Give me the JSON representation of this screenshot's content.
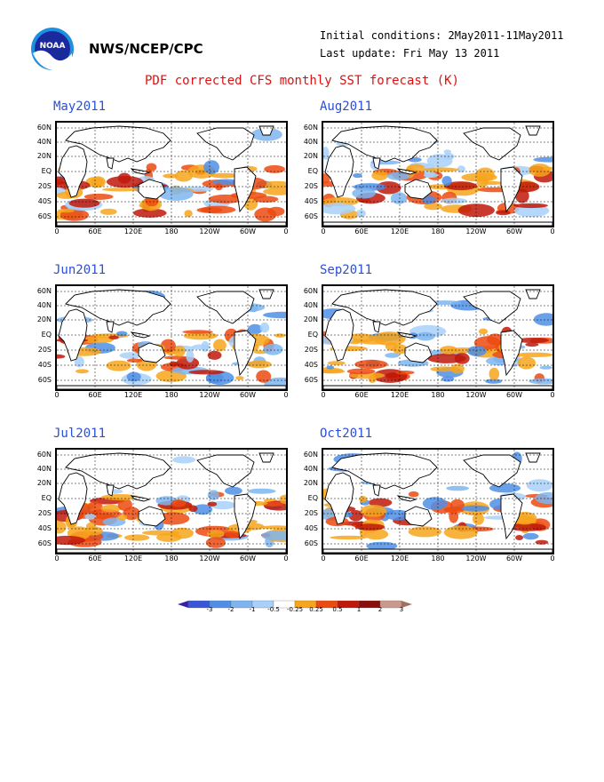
{
  "header": {
    "org": "NWS/NCEP/CPC",
    "initial_conditions": "Initial conditions: 2May2011-11May2011",
    "last_update": "Last update: Fri May 13 2011",
    "title": "PDF corrected CFS monthly SST forecast (K)"
  },
  "logo": {
    "text": "NOAA"
  },
  "panels": [
    {
      "label": "May2011"
    },
    {
      "label": "Aug2011"
    },
    {
      "label": "Jun2011"
    },
    {
      "label": "Sep2011"
    },
    {
      "label": "Jul2011"
    },
    {
      "label": "Oct2011"
    }
  ],
  "axes": {
    "lat_labels": [
      "60N",
      "40N",
      "20N",
      "EQ",
      "20S",
      "40S",
      "60S"
    ],
    "lon_labels": [
      "0",
      "60E",
      "120E",
      "180",
      "120W",
      "60W",
      "0"
    ]
  },
  "colorbar": {
    "labels": [
      "-3",
      "-2",
      "-1",
      "-0.5",
      "-0.25",
      "0.25",
      "0.5",
      "1",
      "2",
      "3"
    ],
    "colors": [
      "#3b1fa8",
      "#3a55d8",
      "#4f8fe6",
      "#7eb5f0",
      "#a8d0f8",
      "#ffffff",
      "#f7a51c",
      "#ec4a10",
      "#c0190b",
      "#8a0e0e",
      "#c99a8c",
      "#a07060"
    ]
  }
}
